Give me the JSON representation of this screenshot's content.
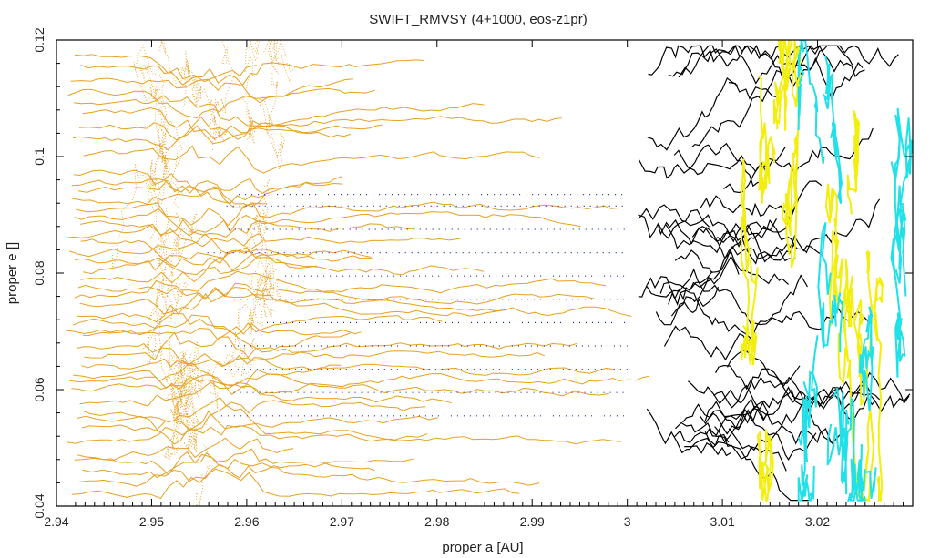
{
  "chart_data": {
    "type": "line",
    "title": "SWIFT_RMVSY (4+1000, eos-z1pr)",
    "xlabel": "proper a [AU]",
    "ylabel": "proper e []",
    "xlim": [
      2.94,
      3.03
    ],
    "ylim": [
      0.04,
      0.12
    ],
    "x_ticks": [
      2.94,
      2.95,
      2.96,
      2.97,
      2.98,
      2.99,
      3.0,
      3.01,
      3.02
    ],
    "x_tick_labels": [
      "2.94",
      "2.95",
      "2.96",
      "2.97",
      "2.98",
      "2.99",
      "3",
      "3.01",
      "3.02"
    ],
    "y_ticks": [
      0.04,
      0.06,
      0.08,
      0.1,
      0.12
    ],
    "y_tick_labels": [
      "0.04",
      "0.06",
      "0.08",
      "0.1",
      "0.12"
    ],
    "grid": false,
    "legend": "none",
    "colors": {
      "orange": "#e8a020",
      "black": "#000000",
      "yellow": "#f2ee10",
      "cyan": "#20e0e8",
      "blue": "#1a2ab0",
      "frame": "#000000"
    },
    "series": [
      {
        "color": "orange",
        "style": "line",
        "y_levels": [
          0.0415,
          0.044,
          0.046,
          0.0475,
          0.049,
          0.051,
          0.053,
          0.055,
          0.0565,
          0.058,
          0.06,
          0.0615,
          0.063,
          0.0645,
          0.066,
          0.0675,
          0.069,
          0.07,
          0.0715,
          0.073,
          0.0745,
          0.076,
          0.0775,
          0.079,
          0.0805,
          0.082,
          0.0835,
          0.085,
          0.0865,
          0.088,
          0.0895,
          0.091,
          0.0925,
          0.094,
          0.0955,
          0.097,
          0.1,
          0.103,
          0.105,
          0.107,
          0.109,
          0.111,
          0.113,
          0.1155,
          0.1175
        ],
        "x_start": 2.941,
        "x_end_range": [
          2.96,
          3.005
        ]
      },
      {
        "color": "orange",
        "style": "dots",
        "x_center": 2.956,
        "y_range": [
          0.04,
          0.12
        ]
      },
      {
        "color": "blue",
        "style": "dots",
        "y_levels": [
          0.0555,
          0.0595,
          0.0635,
          0.0675,
          0.0715,
          0.0755,
          0.0795,
          0.0835,
          0.0875,
          0.0915,
          0.0935
        ],
        "x_range": [
          2.955,
          3.0
        ]
      },
      {
        "color": "black",
        "style": "line",
        "x_range": [
          3.001,
          3.03
        ],
        "y_range": [
          0.045,
          0.118
        ]
      },
      {
        "color": "yellow",
        "style": "line",
        "x_range": [
          3.012,
          3.029
        ],
        "y_range": [
          0.045,
          0.12
        ]
      },
      {
        "color": "cyan",
        "style": "line",
        "x_range": [
          3.018,
          3.03
        ],
        "y_range": [
          0.045,
          0.12
        ]
      }
    ]
  }
}
